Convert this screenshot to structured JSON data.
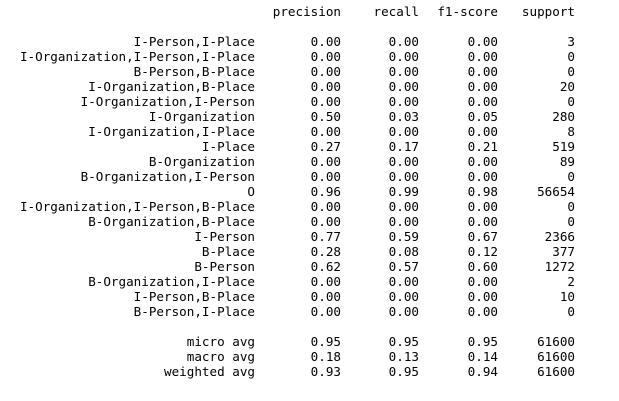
{
  "headers": {
    "precision": "precision",
    "recall": "recall",
    "f1": "f1-score",
    "support": "support"
  },
  "rows": [
    {
      "label": "I-Person,I-Place",
      "precision": "0.00",
      "recall": "0.00",
      "f1": "0.00",
      "support": "3"
    },
    {
      "label": "I-Organization,I-Person,I-Place",
      "precision": "0.00",
      "recall": "0.00",
      "f1": "0.00",
      "support": "0"
    },
    {
      "label": "B-Person,B-Place",
      "precision": "0.00",
      "recall": "0.00",
      "f1": "0.00",
      "support": "0"
    },
    {
      "label": "I-Organization,B-Place",
      "precision": "0.00",
      "recall": "0.00",
      "f1": "0.00",
      "support": "20"
    },
    {
      "label": "I-Organization,I-Person",
      "precision": "0.00",
      "recall": "0.00",
      "f1": "0.00",
      "support": "0"
    },
    {
      "label": "I-Organization",
      "precision": "0.50",
      "recall": "0.03",
      "f1": "0.05",
      "support": "280"
    },
    {
      "label": "I-Organization,I-Place",
      "precision": "0.00",
      "recall": "0.00",
      "f1": "0.00",
      "support": "8"
    },
    {
      "label": "I-Place",
      "precision": "0.27",
      "recall": "0.17",
      "f1": "0.21",
      "support": "519"
    },
    {
      "label": "B-Organization",
      "precision": "0.00",
      "recall": "0.00",
      "f1": "0.00",
      "support": "89"
    },
    {
      "label": "B-Organization,I-Person",
      "precision": "0.00",
      "recall": "0.00",
      "f1": "0.00",
      "support": "0"
    },
    {
      "label": "O",
      "precision": "0.96",
      "recall": "0.99",
      "f1": "0.98",
      "support": "56654"
    },
    {
      "label": "I-Organization,I-Person,B-Place",
      "precision": "0.00",
      "recall": "0.00",
      "f1": "0.00",
      "support": "0"
    },
    {
      "label": "B-Organization,B-Place",
      "precision": "0.00",
      "recall": "0.00",
      "f1": "0.00",
      "support": "0"
    },
    {
      "label": "I-Person",
      "precision": "0.77",
      "recall": "0.59",
      "f1": "0.67",
      "support": "2366"
    },
    {
      "label": "B-Place",
      "precision": "0.28",
      "recall": "0.08",
      "f1": "0.12",
      "support": "377"
    },
    {
      "label": "B-Person",
      "precision": "0.62",
      "recall": "0.57",
      "f1": "0.60",
      "support": "1272"
    },
    {
      "label": "B-Organization,I-Place",
      "precision": "0.00",
      "recall": "0.00",
      "f1": "0.00",
      "support": "2"
    },
    {
      "label": "I-Person,B-Place",
      "precision": "0.00",
      "recall": "0.00",
      "f1": "0.00",
      "support": "10"
    },
    {
      "label": "B-Person,I-Place",
      "precision": "0.00",
      "recall": "0.00",
      "f1": "0.00",
      "support": "0"
    }
  ],
  "averages": [
    {
      "label": "micro avg",
      "precision": "0.95",
      "recall": "0.95",
      "f1": "0.95",
      "support": "61600"
    },
    {
      "label": "macro avg",
      "precision": "0.18",
      "recall": "0.13",
      "f1": "0.14",
      "support": "61600"
    },
    {
      "label": "weighted avg",
      "precision": "0.93",
      "recall": "0.95",
      "f1": "0.94",
      "support": "61600"
    }
  ]
}
